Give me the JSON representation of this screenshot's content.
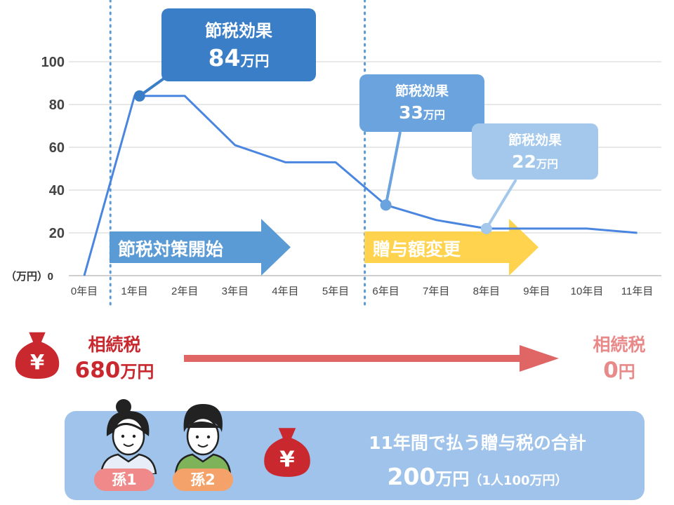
{
  "chart_data": {
    "type": "line",
    "y_unit_label": "（万円）",
    "ylim": [
      0,
      100
    ],
    "y_ticks": [
      0,
      20,
      40,
      60,
      80,
      100
    ],
    "categories": [
      "0年目",
      "1年目",
      "2年目",
      "3年目",
      "4年目",
      "5年目",
      "6年目",
      "7年目",
      "8年目",
      "9年目",
      "10年目",
      "11年目"
    ],
    "series": [
      {
        "values": [
          0,
          84,
          84,
          61,
          53,
          53,
          33,
          26,
          22,
          22,
          22,
          20
        ]
      }
    ],
    "grid": true,
    "line_color": "#4a86e0",
    "phase_markers": [
      {
        "position": "between 0年目 and 1年目",
        "label": "節税対策開始",
        "color": "#5b9bd5"
      },
      {
        "position": "between 5年目 and 6年目",
        "label": "贈与額変更",
        "color": "#ffd34d"
      }
    ],
    "callouts": [
      {
        "title": "節税効果",
        "value": "84",
        "unit": "万円",
        "point": "1年目",
        "color": "#3a7ec8"
      },
      {
        "title": "節税効果",
        "value": "33",
        "unit": "万円",
        "point": "6年目",
        "color": "#6aa3de"
      },
      {
        "title": "節税効果",
        "value": "22",
        "unit": "万円",
        "point": "8年目",
        "color": "#a3c8ec"
      }
    ]
  },
  "before": {
    "label": "相続税",
    "value": "680",
    "unit": "万円",
    "color": "#c8282e"
  },
  "after": {
    "label": "相続税",
    "value": "0",
    "unit": "円",
    "color": "#e98a8a"
  },
  "arrow_color": "#e06666",
  "yen_symbol": "¥",
  "summary": {
    "line1": "11年間で払う贈与税の合計",
    "amount": "200",
    "unit": "万円",
    "note": "（1人100万円）",
    "panel_color": "#9fc3ea"
  },
  "people": [
    {
      "badge": "孫1",
      "badge_color": "#f08a8a",
      "icon": "woman-icon"
    },
    {
      "badge": "孫2",
      "badge_color": "#f5a26a",
      "icon": "man-icon"
    }
  ]
}
